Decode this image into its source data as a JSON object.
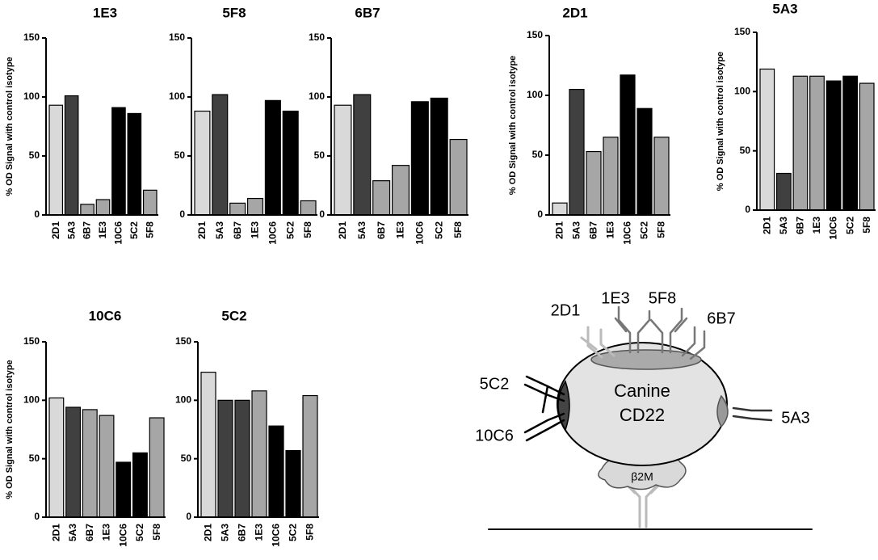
{
  "chart_data": [
    {
      "type": "bar",
      "title": "1E3",
      "ylabel": "% OD Signal with control isotype",
      "categories": [
        "2D1",
        "5A3",
        "6B7",
        "1E3",
        "10C6",
        "5C2",
        "5F8"
      ],
      "values": [
        93,
        101,
        9,
        13,
        91,
        86,
        21
      ],
      "colors": [
        "#d9d9d9",
        "#404040",
        "#a6a6a6",
        "#a6a6a6",
        "#000000",
        "#000000",
        "#a6a6a6"
      ],
      "ylim": [
        0,
        150
      ],
      "yticks": [
        0,
        50,
        100,
        150
      ]
    },
    {
      "type": "bar",
      "title": "5F8",
      "categories": [
        "2D1",
        "5A3",
        "6B7",
        "1E3",
        "10C6",
        "5C2",
        "5F8"
      ],
      "values": [
        88,
        102,
        10,
        14,
        97,
        88,
        12
      ],
      "colors": [
        "#d9d9d9",
        "#404040",
        "#a6a6a6",
        "#a6a6a6",
        "#000000",
        "#000000",
        "#a6a6a6"
      ],
      "ylim": [
        0,
        150
      ],
      "yticks": [
        0,
        50,
        100,
        150
      ]
    },
    {
      "type": "bar",
      "title": "6B7",
      "categories": [
        "2D1",
        "5A3",
        "6B7",
        "1E3",
        "10C6",
        "5C2",
        "5F8"
      ],
      "values": [
        93,
        102,
        29,
        42,
        96,
        99,
        64
      ],
      "colors": [
        "#d9d9d9",
        "#404040",
        "#a6a6a6",
        "#a6a6a6",
        "#000000",
        "#000000",
        "#a6a6a6"
      ],
      "ylim": [
        0,
        150
      ],
      "yticks": [
        0,
        50,
        100,
        150
      ]
    },
    {
      "type": "bar",
      "title": "2D1",
      "ylabel": "% OD Signal with control isotype",
      "categories": [
        "2D1",
        "5A3",
        "6B7",
        "1E3",
        "10C6",
        "5C2",
        "5F8"
      ],
      "values": [
        10,
        105,
        53,
        65,
        117,
        89,
        65
      ],
      "colors": [
        "#d9d9d9",
        "#404040",
        "#a6a6a6",
        "#a6a6a6",
        "#000000",
        "#000000",
        "#a6a6a6"
      ],
      "ylim": [
        0,
        150
      ],
      "yticks": [
        0,
        50,
        100,
        150
      ]
    },
    {
      "type": "bar",
      "title": "5A3",
      "ylabel": "% OD Signal with control isotype",
      "categories": [
        "2D1",
        "5A3",
        "6B7",
        "1E3",
        "10C6",
        "5C2",
        "5F8"
      ],
      "values": [
        119,
        31,
        113,
        113,
        109,
        113,
        107
      ],
      "colors": [
        "#d9d9d9",
        "#404040",
        "#a6a6a6",
        "#a6a6a6",
        "#000000",
        "#000000",
        "#a6a6a6"
      ],
      "ylim": [
        0,
        150
      ],
      "yticks": [
        0,
        50,
        100,
        150
      ]
    },
    {
      "type": "bar",
      "title": "10C6",
      "ylabel": "% OD Signal with control isotype",
      "categories": [
        "2D1",
        "5A3",
        "6B7",
        "1E3",
        "10C6",
        "5C2",
        "5F8"
      ],
      "values": [
        102,
        94,
        92,
        87,
        47,
        55,
        85
      ],
      "colors": [
        "#d9d9d9",
        "#404040",
        "#a6a6a6",
        "#a6a6a6",
        "#000000",
        "#000000",
        "#a6a6a6"
      ],
      "ylim": [
        0,
        150
      ],
      "yticks": [
        0,
        50,
        100,
        150
      ]
    },
    {
      "type": "bar",
      "title": "5C2",
      "categories": [
        "2D1",
        "5A3",
        "6B7",
        "1E3",
        "10C6",
        "5C2",
        "5F8"
      ],
      "values": [
        124,
        100,
        100,
        108,
        78,
        57,
        104
      ],
      "colors": [
        "#d9d9d9",
        "#404040",
        "#404040",
        "#a6a6a6",
        "#000000",
        "#000000",
        "#a6a6a6"
      ],
      "ylim": [
        0,
        150
      ],
      "yticks": [
        0,
        50,
        100,
        150
      ]
    }
  ],
  "diagram": {
    "labels": [
      "2D1",
      "1E3",
      "5F8",
      "6B7",
      "5C2",
      "10C6",
      "5A3"
    ],
    "center": [
      "Canine",
      "CD22"
    ],
    "subunit": "β2M"
  }
}
